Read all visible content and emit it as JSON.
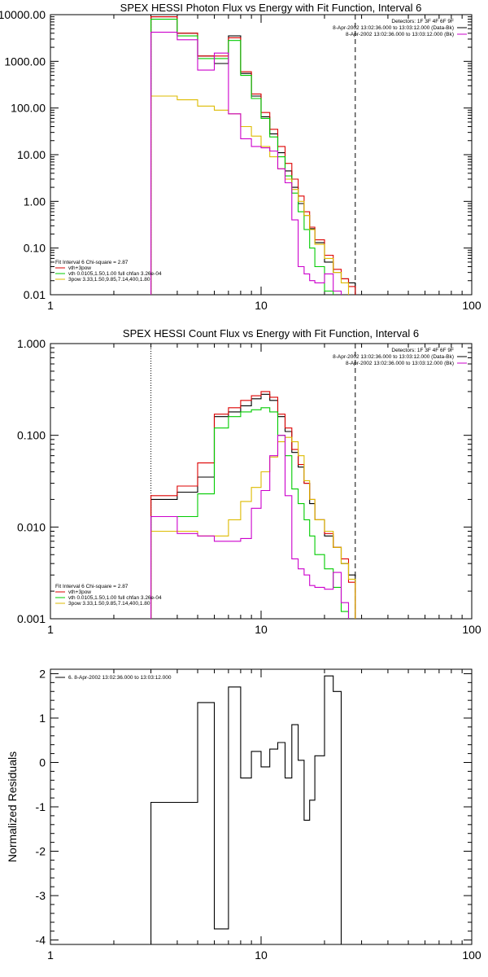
{
  "chart_data": [
    {
      "type": "line",
      "step": true,
      "title": "SPEX HESSI Photon Flux vs Energy with Fit Function, Interval 6",
      "xlabel": "",
      "ylabel": "",
      "xscale": "log",
      "yscale": "log",
      "xlim": [
        1,
        100
      ],
      "ylim": [
        0.01,
        10000
      ],
      "xtick_labels": [
        "1",
        "10",
        "100"
      ],
      "ytick_labels": [
        "0.01",
        "0.10",
        "1.00",
        "10.00",
        "100.00",
        "1000.00",
        "10000.00"
      ],
      "marker_lines": [
        {
          "x": 3,
          "style": "dotted"
        },
        {
          "x": 28,
          "style": "dashed"
        }
      ],
      "header_lines": [
        {
          "text": "Detectors: 1F 3F 4F 6F 9F"
        },
        {
          "text": "8-Apr-2002 13:02:36.000 to 13:03:12.000 (Data-Bk)",
          "color": "#000000"
        },
        {
          "text": "8-Apr-2002 13:02:36.000 to 13:03:12.000 (Bk)",
          "color": "#cc00cc"
        }
      ],
      "legend_location": "lower-left",
      "legend_header": "Fit Interval 6   Chi-square = 2.87",
      "legend": [
        {
          "text": "vth+3pow",
          "color": "#dd0000"
        },
        {
          "text": "vth 0.0105,1.50,1.00  full chfan 3.26e-04",
          "color": "#00cc00"
        },
        {
          "text": "3pow 3.33,1.50,9.85,7.14,400,1.80",
          "color": "#ddbb00"
        }
      ],
      "bin_edges": [
        3,
        4,
        5,
        6,
        7,
        8,
        9,
        10,
        11,
        12,
        13,
        14,
        15,
        16,
        17,
        18,
        20,
        22,
        24,
        26,
        28
      ],
      "series": [
        {
          "color": "#000000",
          "values": [
            9000,
            4000,
            1300,
            900,
            3500,
            550,
            180,
            65,
            28,
            11,
            4.5,
            2.0,
            0.9,
            0.5,
            0.26,
            0.13,
            0.05,
            0.03,
            0.022,
            0.018
          ]
        },
        {
          "color": "#dd0000",
          "values": [
            9000,
            4000,
            1300,
            1300,
            3200,
            600,
            200,
            80,
            35,
            15,
            6.5,
            3.0,
            1.3,
            0.6,
            0.28,
            0.15,
            0.07,
            0.035,
            0.022,
            0.015
          ]
        },
        {
          "color": "#00cc00",
          "values": [
            8000,
            3500,
            1150,
            1150,
            2800,
            500,
            160,
            60,
            24,
            9,
            3.5,
            1.5,
            0.6,
            0.25,
            0.1,
            0.04,
            0.012
          ]
        },
        {
          "color": "#ddbb00",
          "values": [
            180,
            150,
            110,
            90,
            75,
            40,
            25,
            15,
            9,
            5,
            3,
            1.8,
            1.0,
            0.5,
            0.25,
            0.12,
            0.06,
            0.03,
            0.018
          ]
        },
        {
          "color": "#cc00cc",
          "values": [
            4200,
            2900,
            650,
            1500,
            75,
            22,
            15,
            14,
            12,
            5,
            2.5,
            0.4,
            0.04,
            0.028,
            0.02,
            0.018,
            0.028,
            0.012
          ]
        }
      ]
    },
    {
      "type": "line",
      "step": true,
      "title": "SPEX HESSI Count Flux vs Energy with Fit Function, Interval 6",
      "xlabel": "",
      "ylabel": "",
      "xscale": "log",
      "yscale": "log",
      "xlim": [
        1,
        100
      ],
      "ylim": [
        0.001,
        1
      ],
      "xtick_labels": [
        "1",
        "10",
        "100"
      ],
      "ytick_labels": [
        "0.001",
        "0.010",
        "0.100",
        "1.000"
      ],
      "marker_lines": [
        {
          "x": 3,
          "style": "dotted"
        },
        {
          "x": 28,
          "style": "dashed"
        }
      ],
      "header_lines": [
        {
          "text": "Detectors: 1F 3F 4F 6F 9F"
        },
        {
          "text": "8-Apr-2002 13:02:36.000 to 13:03:12.000 (Data-Bk)",
          "color": "#000000"
        },
        {
          "text": "8-Apr-2002 13:02:36.000 to 13:03:12.000 (Bk)",
          "color": "#cc00cc"
        }
      ],
      "legend_location": "lower-left",
      "legend_header": "Fit Interval 6   Chi-square = 2.87",
      "legend": [
        {
          "text": "vth+3pow",
          "color": "#dd0000"
        },
        {
          "text": "vth 0.0105,1.50,1.00  full chfan 3.26e-04",
          "color": "#00cc00"
        },
        {
          "text": "3pow 3.33,1.50,9.85,7.14,400,1.80",
          "color": "#ddbb00"
        }
      ],
      "bin_edges": [
        3,
        4,
        5,
        6,
        7,
        8,
        9,
        10,
        11,
        12,
        13,
        14,
        15,
        16,
        17,
        18,
        20,
        22,
        24,
        26,
        28
      ],
      "series": [
        {
          "color": "#000000",
          "values": [
            0.02,
            0.024,
            0.035,
            0.16,
            0.18,
            0.21,
            0.25,
            0.28,
            0.24,
            0.16,
            0.11,
            0.065,
            0.045,
            0.03,
            0.018,
            0.012,
            0.008,
            0.006,
            0.004,
            0.003
          ]
        },
        {
          "color": "#dd0000",
          "values": [
            0.022,
            0.028,
            0.05,
            0.17,
            0.2,
            0.24,
            0.27,
            0.3,
            0.26,
            0.17,
            0.12,
            0.07,
            0.048,
            0.03,
            0.02,
            0.012,
            0.0085,
            0.006,
            0.0045,
            0.0025
          ]
        },
        {
          "color": "#00cc00",
          "values": [
            0.013,
            0.013,
            0.023,
            0.12,
            0.16,
            0.18,
            0.19,
            0.2,
            0.18,
            0.1,
            0.06,
            0.026,
            0.018,
            0.012,
            0.008,
            0.005,
            0.0035,
            0.0022,
            0.0012
          ]
        },
        {
          "color": "#ddbb00",
          "values": [
            0.009,
            0.009,
            0.008,
            0.008,
            0.012,
            0.019,
            0.027,
            0.04,
            0.058,
            0.085,
            0.095,
            0.085,
            0.06,
            0.032,
            0.02,
            0.012,
            0.009,
            0.006,
            0.004,
            0.0027
          ]
        },
        {
          "color": "#cc00cc",
          "values": [
            0.013,
            0.0085,
            0.008,
            0.007,
            0.007,
            0.0075,
            0.016,
            0.025,
            0.06,
            0.1,
            0.022,
            0.0045,
            0.0035,
            0.003,
            0.0023,
            0.0022,
            0.0021,
            0.0032,
            0.0015
          ]
        }
      ]
    },
    {
      "type": "line",
      "step": true,
      "title": "",
      "xlabel": "",
      "ylabel": "Normalized Residuals",
      "xscale": "log",
      "yscale": "linear",
      "xlim": [
        1,
        100
      ],
      "ylim": [
        -4.1,
        2.1
      ],
      "xtick_labels": [
        "1",
        "10",
        "100"
      ],
      "ytick_labels": [
        "2",
        "1",
        "0",
        "-1",
        "-2",
        "-3",
        "-4"
      ],
      "legend_location": "top-left",
      "legend": [
        {
          "text": "6.  8-Apr-2002 13:02:36.000 to 13:03:12.000",
          "color": "#000000"
        }
      ],
      "bin_edges": [
        3,
        4,
        5,
        6,
        7,
        8,
        9,
        10,
        11,
        12,
        13,
        14,
        15,
        16,
        17,
        18,
        20,
        22,
        24,
        26,
        28
      ],
      "series": [
        {
          "color": "#000000",
          "values": [
            -0.9,
            -0.9,
            1.35,
            -3.75,
            1.7,
            -0.35,
            0.25,
            -0.1,
            0.3,
            0.45,
            -0.35,
            0.85,
            0.05,
            -1.3,
            -0.85,
            0.15,
            1.95,
            1.6
          ]
        }
      ]
    }
  ]
}
